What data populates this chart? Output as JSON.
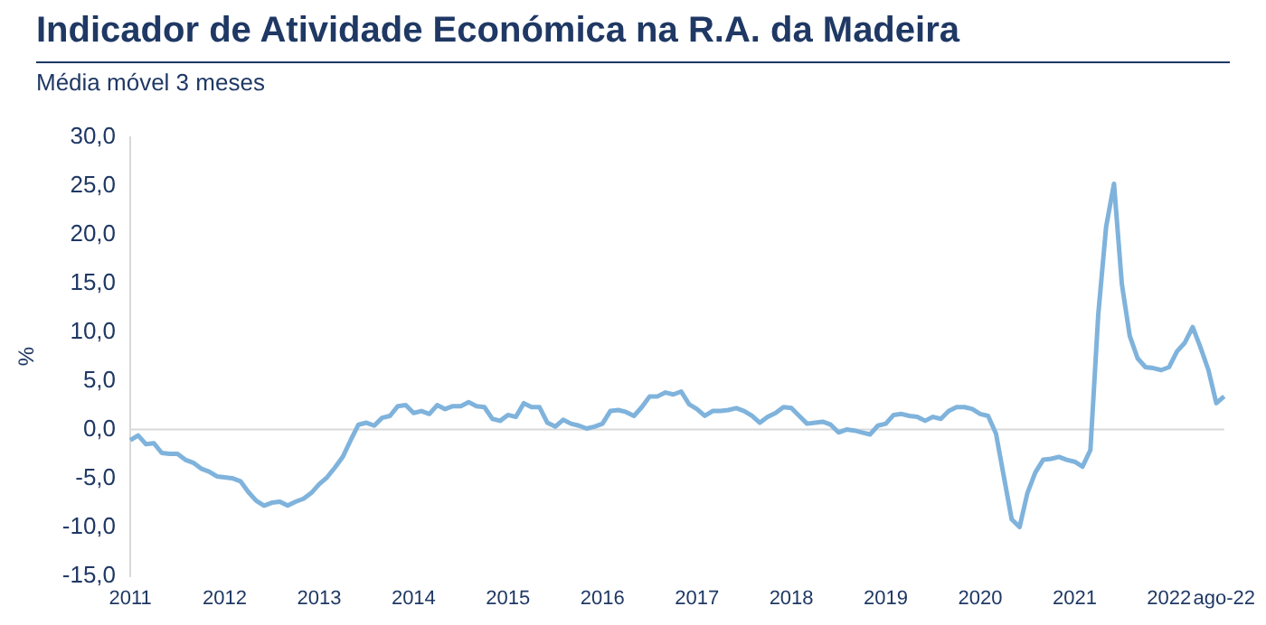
{
  "chart_data": {
    "type": "line",
    "title": "Indicador de Atividade Económica na R.A. da Madeira",
    "subtitle": "Média móvel 3 meses",
    "ylabel": "%",
    "categories": [
      "2011",
      null,
      null,
      null,
      null,
      null,
      null,
      null,
      null,
      null,
      null,
      null,
      "2012",
      null,
      null,
      null,
      null,
      null,
      null,
      null,
      null,
      null,
      null,
      null,
      "2013",
      null,
      null,
      null,
      null,
      null,
      null,
      null,
      null,
      null,
      null,
      null,
      "2014",
      null,
      null,
      null,
      null,
      null,
      null,
      null,
      null,
      null,
      null,
      null,
      "2015",
      null,
      null,
      null,
      null,
      null,
      null,
      null,
      null,
      null,
      null,
      null,
      "2016",
      null,
      null,
      null,
      null,
      null,
      null,
      null,
      null,
      null,
      null,
      null,
      "2017",
      null,
      null,
      null,
      null,
      null,
      null,
      null,
      null,
      null,
      null,
      null,
      "2018",
      null,
      null,
      null,
      null,
      null,
      null,
      null,
      null,
      null,
      null,
      null,
      "2019",
      null,
      null,
      null,
      null,
      null,
      null,
      null,
      null,
      null,
      null,
      null,
      "2020",
      null,
      null,
      null,
      null,
      null,
      null,
      null,
      null,
      null,
      null,
      null,
      "2021",
      null,
      null,
      null,
      null,
      null,
      null,
      null,
      null,
      null,
      null,
      null,
      "2022",
      null,
      null,
      null,
      null,
      null,
      null,
      "ago-22"
    ],
    "series": [
      {
        "color": "#7fb3dc",
        "values": [
          -1.1,
          -0.6,
          -1.5,
          -1.4,
          -2.4,
          -2.5,
          -2.5,
          -3.1,
          -3.4,
          -4.0,
          -4.3,
          -4.8,
          -4.9,
          -5.0,
          -5.3,
          -6.4,
          -7.3,
          -7.8,
          -7.5,
          -7.4,
          -7.8,
          -7.4,
          -7.1,
          -6.5,
          -5.6,
          -4.9,
          -3.9,
          -2.8,
          -1.1,
          0.5,
          0.7,
          0.4,
          1.2,
          1.4,
          2.4,
          2.5,
          1.7,
          1.9,
          1.6,
          2.5,
          2.1,
          2.4,
          2.4,
          2.8,
          2.4,
          2.3,
          1.1,
          0.9,
          1.5,
          1.3,
          2.7,
          2.3,
          2.3,
          0.7,
          0.3,
          1.0,
          0.6,
          0.4,
          0.1,
          0.3,
          0.6,
          1.9,
          2.0,
          1.8,
          1.4,
          2.3,
          3.4,
          3.4,
          3.8,
          3.6,
          3.9,
          2.6,
          2.1,
          1.4,
          1.9,
          1.9,
          2.0,
          2.2,
          1.9,
          1.4,
          0.7,
          1.3,
          1.7,
          2.3,
          2.2,
          1.4,
          0.6,
          0.7,
          0.8,
          0.5,
          -0.3,
          0,
          -0.1,
          -0.3,
          -0.5,
          0.4,
          0.6,
          1.5,
          1.6,
          1.4,
          1.3,
          0.9,
          1.3,
          1.1,
          1.9,
          2.3,
          2.3,
          2.1,
          1.6,
          1.4,
          -0.4,
          -4.8,
          -9.2,
          -10.0,
          -6.5,
          -4.4,
          -3.1,
          -3.0,
          -2.8,
          -3.1,
          -3.3,
          -3.8,
          -2.1,
          11.8,
          20.8,
          25.2,
          14.9,
          9.6,
          7.3,
          6.4,
          6.3,
          6.1,
          6.4,
          8.0,
          8.9,
          10.5,
          8.4,
          6.1,
          2.7,
          3.4
        ]
      }
    ],
    "ylim": [
      -15,
      30
    ],
    "yticks": [
      {
        "value": -15,
        "label": "-15,0"
      },
      {
        "value": -10,
        "label": "-10,0"
      },
      {
        "value": -5,
        "label": "-5,0"
      },
      {
        "value": 0,
        "label": "0,0"
      },
      {
        "value": 5,
        "label": "5,0"
      },
      {
        "value": 10,
        "label": "10,0"
      },
      {
        "value": 15,
        "label": "15,0"
      },
      {
        "value": 20,
        "label": "20,0"
      },
      {
        "value": 25,
        "label": "25,0"
      },
      {
        "value": 30,
        "label": "30,0"
      }
    ],
    "ref_lines": [
      {
        "axis": "y",
        "value": 0,
        "color": "#d9d9d9"
      }
    ],
    "grid": false,
    "legend": false,
    "marker": "none",
    "line_style": "solid"
  }
}
